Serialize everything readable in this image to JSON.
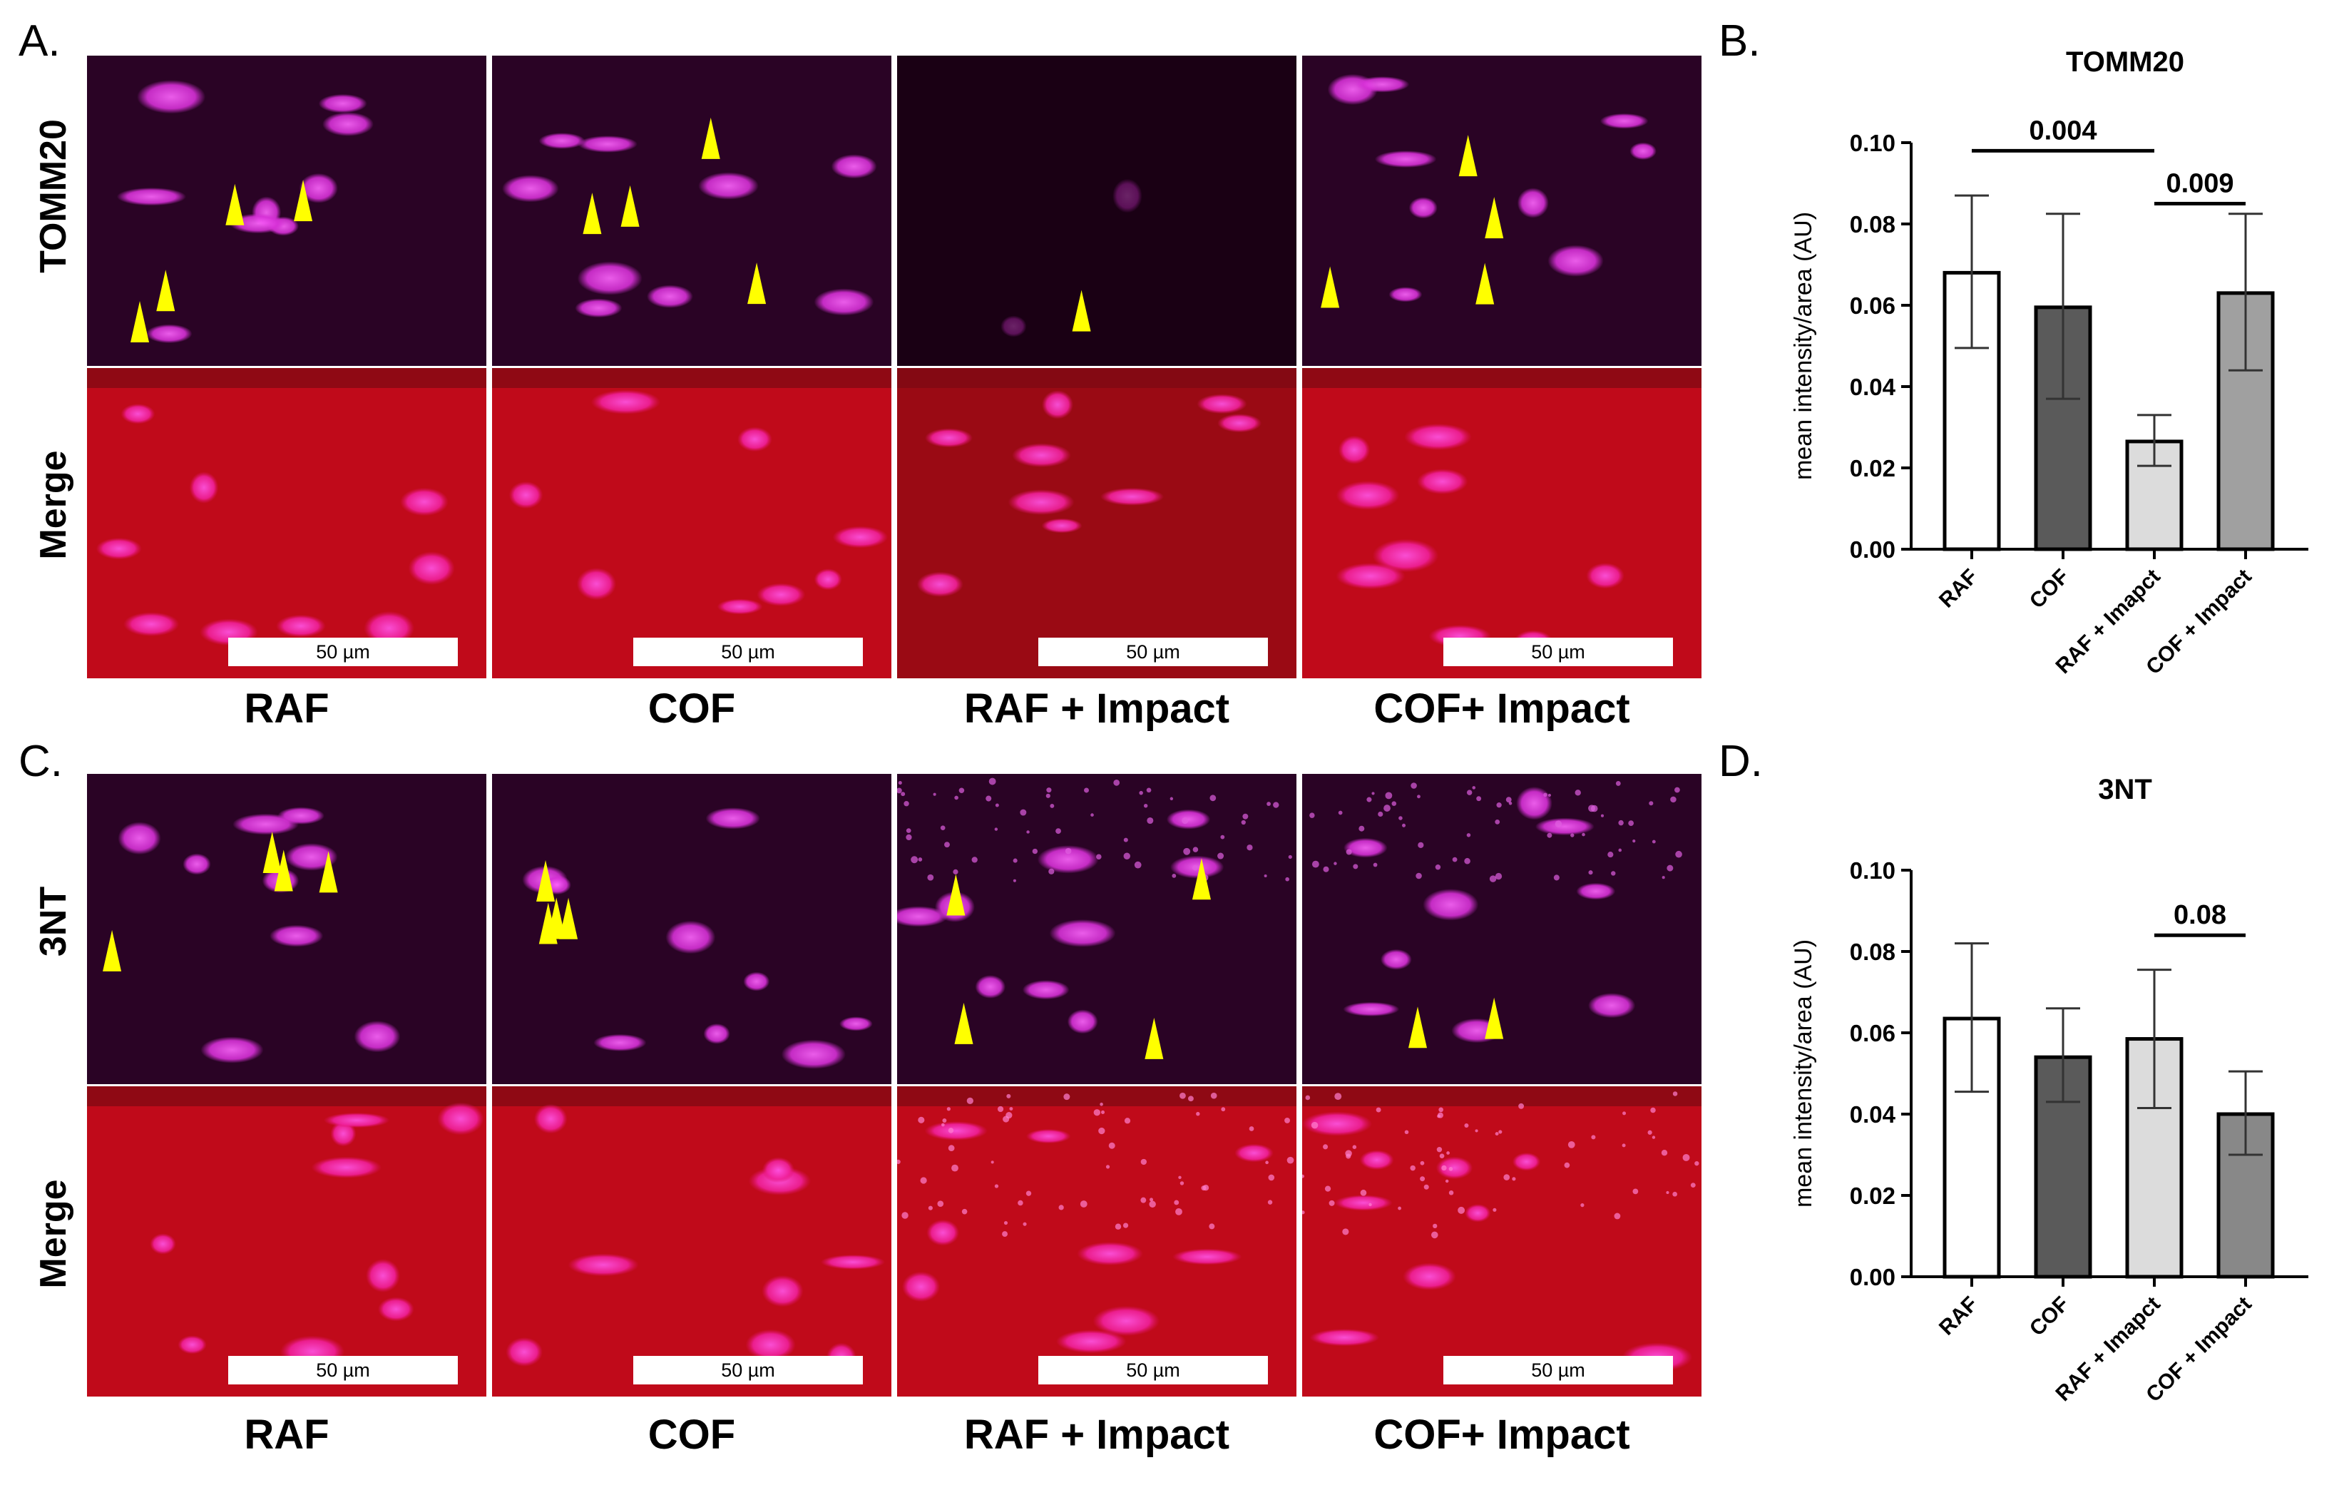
{
  "figure": {
    "panels": [
      {
        "letter": "A.",
        "stain": "TOMM20",
        "merge": "Merge",
        "groups": [
          "RAF",
          "COF",
          "RAF + Impact",
          "COF+ Impact"
        ],
        "scale_label": "50 µm"
      },
      {
        "letter": "C.",
        "stain": "3NT",
        "merge": "Merge",
        "groups": [
          "RAF",
          "COF",
          "RAF + Impact",
          "COF+ Impact"
        ],
        "scale_label": "50 µm"
      }
    ]
  },
  "chart_data": [
    {
      "panel_letter": "B.",
      "type": "bar",
      "title": "TOMM20",
      "xlabel": "",
      "ylabel": "mean intensity/area (AU)",
      "ylim": [
        0,
        0.1
      ],
      "yticks": [
        "0.00",
        "0.02",
        "0.04",
        "0.06",
        "0.08",
        "0.10"
      ],
      "categories": [
        "RAF",
        "COF",
        "RAF + Imapct",
        "COF + Impact"
      ],
      "values": [
        0.068,
        0.0595,
        0.0265,
        0.063
      ],
      "error_low": [
        0.0495,
        0.037,
        0.0205,
        0.044
      ],
      "error_high": [
        0.087,
        0.0825,
        0.033,
        0.0825
      ],
      "bar_colors": [
        "#ffffff",
        "#5a5a5a",
        "#dcdcdc",
        "#a0a0a0"
      ],
      "annotations": [
        {
          "text": "0.004",
          "from": 0,
          "to": 2,
          "y": 0.098
        },
        {
          "text": "0.009",
          "from": 2,
          "to": 3,
          "y": 0.085
        }
      ]
    },
    {
      "panel_letter": "D.",
      "type": "bar",
      "title": "3NT",
      "xlabel": "",
      "ylabel": "mean intensity/area (AU)",
      "ylim": [
        0,
        0.1
      ],
      "yticks": [
        "0.00",
        "0.02",
        "0.04",
        "0.06",
        "0.08",
        "0.10"
      ],
      "categories": [
        "RAF",
        "COF",
        "RAF + Imapct",
        "COF + Impact"
      ],
      "values": [
        0.0635,
        0.054,
        0.0585,
        0.04
      ],
      "error_low": [
        0.0455,
        0.043,
        0.0415,
        0.03
      ],
      "error_high": [
        0.082,
        0.066,
        0.0755,
        0.0505
      ],
      "bar_colors": [
        "#ffffff",
        "#5a5a5a",
        "#dcdcdc",
        "#888888"
      ],
      "annotations": [
        {
          "text": "0.08",
          "from": 2,
          "to": 3,
          "y": 0.084
        }
      ]
    }
  ]
}
